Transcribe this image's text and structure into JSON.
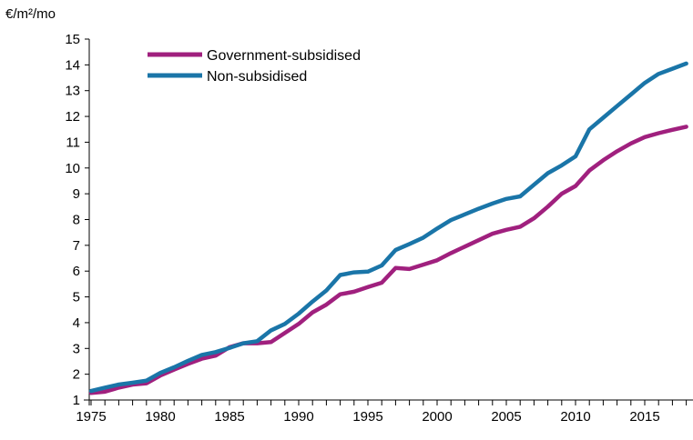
{
  "chart_data": {
    "type": "line",
    "title": "",
    "ylabel": "€/m²/mo",
    "xlabel": "",
    "xlim": [
      1975,
      2018
    ],
    "ylim": [
      1,
      15
    ],
    "x_ticks": [
      1975,
      1980,
      1985,
      1990,
      1995,
      2000,
      2005,
      2010,
      2015
    ],
    "y_ticks": [
      1,
      2,
      3,
      4,
      5,
      6,
      7,
      8,
      9,
      10,
      11,
      12,
      13,
      14,
      15
    ],
    "grid": false,
    "legend": "top-left",
    "x": [
      1975,
      1976,
      1977,
      1978,
      1979,
      1980,
      1981,
      1982,
      1983,
      1984,
      1985,
      1986,
      1987,
      1988,
      1989,
      1990,
      1991,
      1992,
      1993,
      1994,
      1995,
      1996,
      1997,
      1998,
      1999,
      2000,
      2001,
      2002,
      2003,
      2004,
      2005,
      2006,
      2007,
      2008,
      2009,
      2010,
      2011,
      2012,
      2013,
      2014,
      2015,
      2016,
      2017,
      2018
    ],
    "series": [
      {
        "name": "Government-subsidised",
        "color": "#a0207e",
        "values": [
          1.27,
          1.32,
          1.48,
          1.6,
          1.65,
          1.95,
          2.18,
          2.4,
          2.6,
          2.72,
          3.05,
          3.2,
          3.2,
          3.25,
          3.6,
          3.95,
          4.4,
          4.7,
          5.1,
          5.2,
          5.38,
          5.55,
          6.12,
          6.08,
          6.25,
          6.42,
          6.7,
          6.95,
          7.2,
          7.45,
          7.6,
          7.72,
          8.05,
          8.5,
          9.0,
          9.3,
          9.9,
          10.3,
          10.65,
          10.95,
          11.2,
          11.35,
          11.48,
          11.6
        ]
      },
      {
        "name": "Non-subsidised",
        "color": "#1a75a8",
        "values": [
          1.35,
          1.48,
          1.6,
          1.67,
          1.75,
          2.05,
          2.27,
          2.52,
          2.75,
          2.86,
          3.02,
          3.2,
          3.28,
          3.7,
          3.95,
          4.35,
          4.82,
          5.25,
          5.85,
          5.95,
          5.98,
          6.22,
          6.82,
          7.05,
          7.3,
          7.65,
          7.98,
          8.2,
          8.42,
          8.62,
          8.8,
          8.9,
          9.35,
          9.8,
          10.1,
          10.45,
          11.5,
          11.95,
          12.4,
          12.85,
          13.3,
          13.65,
          13.85,
          14.05
        ]
      }
    ]
  }
}
